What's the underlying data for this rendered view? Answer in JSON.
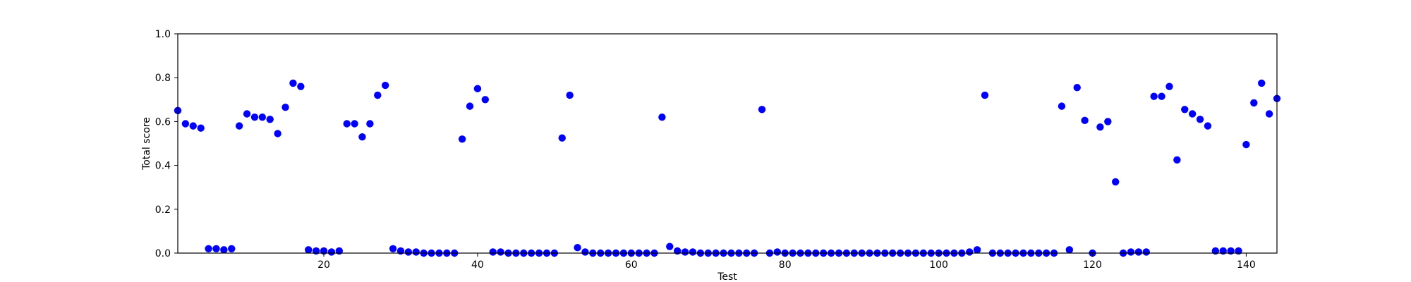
{
  "chart_data": {
    "type": "scatter",
    "xlabel": "Test",
    "ylabel": "Total score",
    "xlim": [
      1,
      144
    ],
    "ylim": [
      0.0,
      1.0
    ],
    "xticks": [
      20,
      40,
      60,
      80,
      100,
      120,
      140
    ],
    "yticks": [
      0.0,
      0.2,
      0.4,
      0.6,
      0.8,
      1.0
    ],
    "ytick_labels": [
      "0.0",
      "0.2",
      "0.4",
      "0.6",
      "0.8",
      "1.0"
    ],
    "grid": false,
    "marker_color": "#0000ff",
    "x": [
      1,
      2,
      3,
      4,
      5,
      6,
      7,
      8,
      9,
      10,
      11,
      12,
      13,
      14,
      15,
      16,
      17,
      18,
      19,
      20,
      21,
      22,
      23,
      24,
      25,
      26,
      27,
      28,
      29,
      30,
      31,
      32,
      33,
      34,
      35,
      36,
      37,
      38,
      39,
      40,
      41,
      42,
      43,
      44,
      45,
      46,
      47,
      48,
      49,
      50,
      51,
      52,
      53,
      54,
      55,
      56,
      57,
      58,
      59,
      60,
      61,
      62,
      63,
      64,
      65,
      66,
      67,
      68,
      69,
      70,
      71,
      72,
      73,
      74,
      75,
      76,
      77,
      78,
      79,
      80,
      81,
      82,
      83,
      84,
      85,
      86,
      87,
      88,
      89,
      90,
      91,
      92,
      93,
      94,
      95,
      96,
      97,
      98,
      99,
      100,
      101,
      102,
      103,
      104,
      105,
      106,
      107,
      108,
      109,
      110,
      111,
      112,
      113,
      114,
      115,
      116,
      117,
      118,
      119,
      120,
      121,
      122,
      123,
      124,
      125,
      126,
      127,
      128,
      129,
      130,
      131,
      132,
      133,
      134,
      135,
      136,
      137,
      138,
      139,
      140,
      141,
      142,
      143,
      144
    ],
    "y": [
      0.65,
      0.59,
      0.58,
      0.57,
      0.02,
      0.02,
      0.015,
      0.02,
      0.58,
      0.635,
      0.62,
      0.62,
      0.61,
      0.545,
      0.665,
      0.775,
      0.76,
      0.015,
      0.01,
      0.01,
      0.005,
      0.01,
      0.59,
      0.59,
      0.53,
      0.59,
      0.72,
      0.765,
      0.02,
      0.01,
      0.005,
      0.005,
      0.0,
      0.0,
      0.0,
      0.0,
      0.0,
      0.52,
      0.67,
      0.75,
      0.7,
      0.005,
      0.005,
      0.0,
      0.0,
      0.0,
      0.0,
      0.0,
      0.0,
      0.0,
      0.525,
      0.72,
      0.025,
      0.005,
      0.0,
      0.0,
      0.0,
      0.0,
      0.0,
      0.0,
      0.0,
      0.0,
      0.0,
      0.62,
      0.03,
      0.01,
      0.005,
      0.005,
      0.0,
      0.0,
      0.0,
      0.0,
      0.0,
      0.0,
      0.0,
      0.0,
      0.655,
      0.0,
      0.005,
      0.0,
      0.0,
      0.0,
      0.0,
      0.0,
      0.0,
      0.0,
      0.0,
      0.0,
      0.0,
      0.0,
      0.0,
      0.0,
      0.0,
      0.0,
      0.0,
      0.0,
      0.0,
      0.0,
      0.0,
      0.0,
      0.0,
      0.0,
      0.0,
      0.005,
      0.015,
      0.72,
      0.0,
      0.0,
      0.0,
      0.0,
      0.0,
      0.0,
      0.0,
      0.0,
      0.0,
      0.67,
      0.015,
      0.755,
      0.605,
      0.0,
      0.575,
      0.6,
      0.325,
      0.0,
      0.005,
      0.005,
      0.005,
      0.715,
      0.715,
      0.76,
      0.425,
      0.655,
      0.635,
      0.61,
      0.58,
      0.01,
      0.01,
      0.01,
      0.01,
      0.495,
      0.685,
      0.775,
      0.635,
      0.705
    ]
  }
}
